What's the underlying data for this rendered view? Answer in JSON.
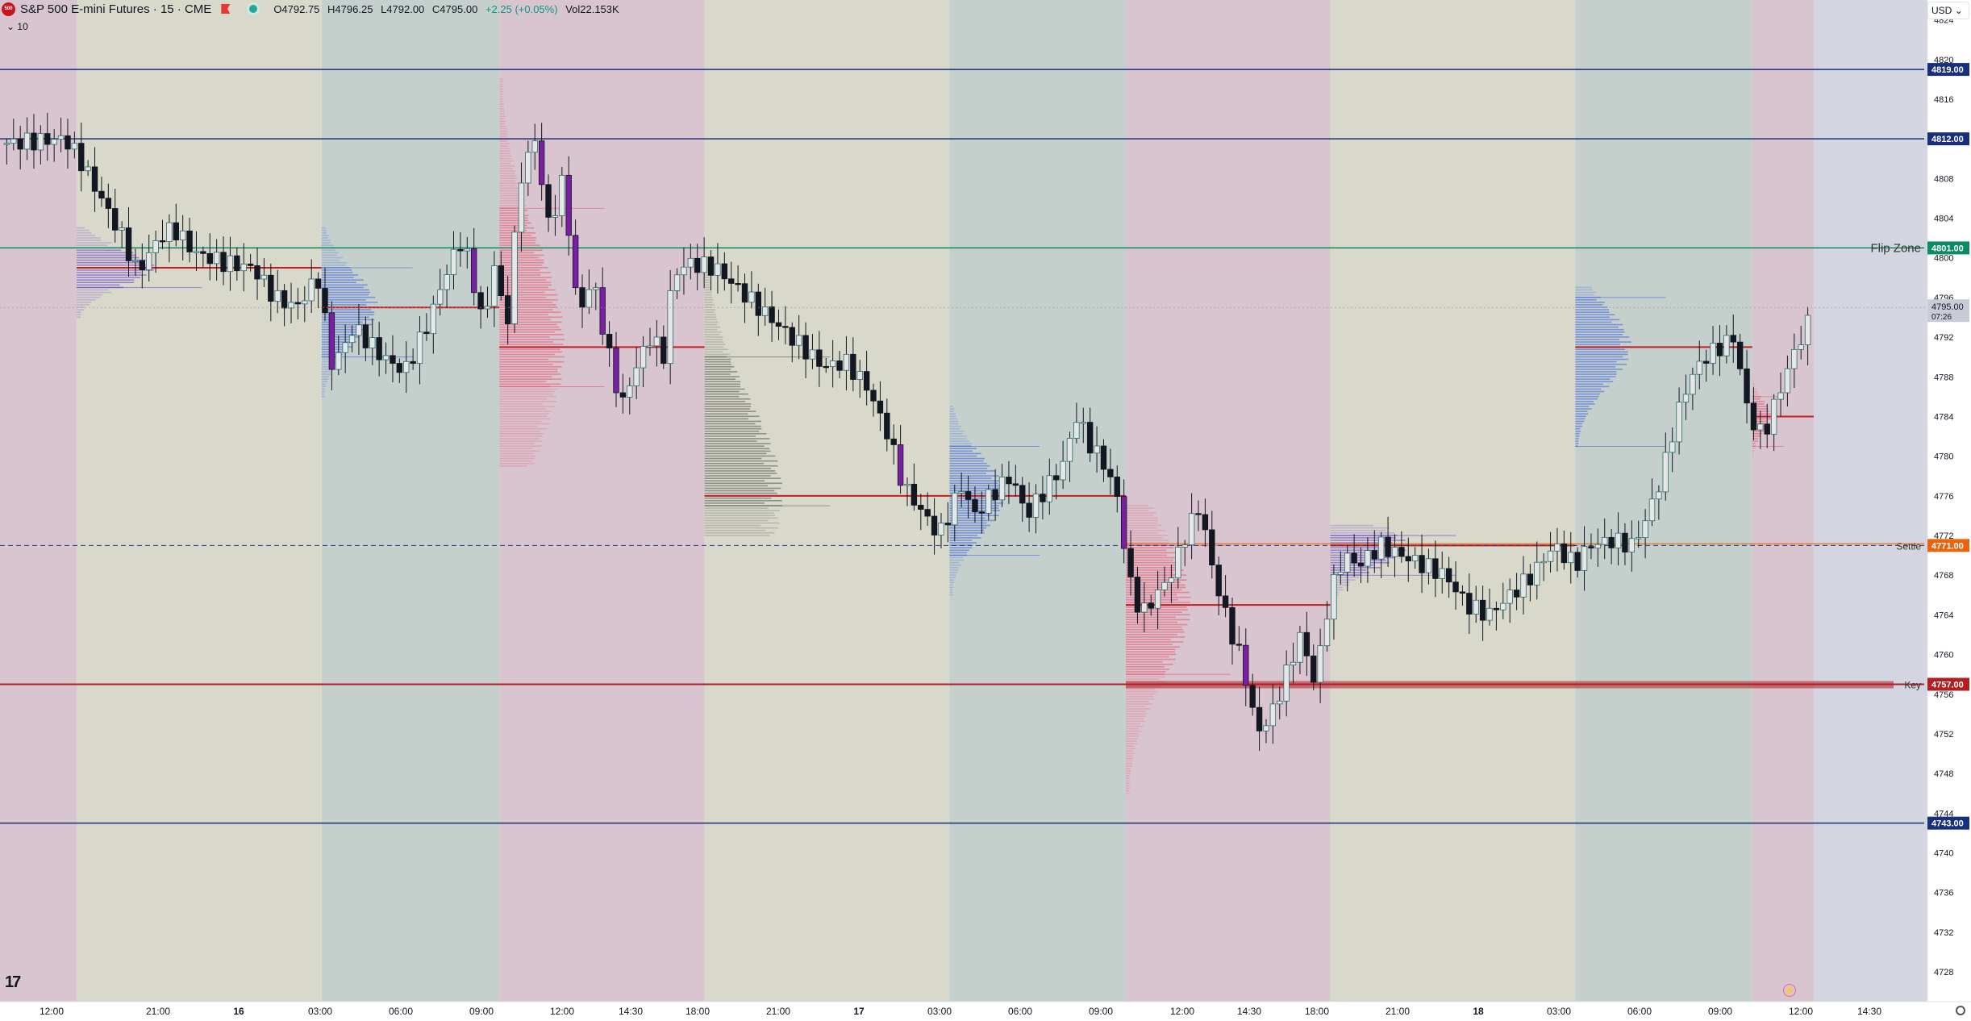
{
  "header": {
    "logo_text": "500",
    "symbol_title": "S&P 500 E-mini Futures · 15 · CME",
    "ohlc": {
      "open": "O4792.75",
      "high": "H4796.25",
      "low": "L4792.00",
      "close": "C4795.00",
      "change": "+2.25 (+0.05%)",
      "volume": "Vol22.153K"
    },
    "sub_label": "10",
    "currency": "USD"
  },
  "colors": {
    "bg_red_session": "#d9c5cf",
    "bg_yellow_session": "#d8d8cb",
    "bg_teal_session": "#c5d0cd",
    "bg_gray_future": "#d3d6e0",
    "level_blue": "#1a2f7a",
    "flip_green": "#0b8a63",
    "settle_orange": "#e8650d",
    "key_red": "#b01f24",
    "poc_red": "#c41e22",
    "candle_up_fill": "#e6e6e6",
    "candle_down": "#131722",
    "candle_purple": "#7a1fa2"
  },
  "chart_data": {
    "type": "candlestick",
    "title": "S&P 500 E-mini Futures · 15 · CME",
    "y_range": [
      4725,
      4826
    ],
    "y_ticks": [
      4728,
      4732,
      4736,
      4740,
      4744,
      4748,
      4752,
      4756,
      4760,
      4764,
      4768,
      4772,
      4776,
      4780,
      4784,
      4788,
      4792,
      4796,
      4800,
      4804,
      4808,
      4812,
      4816,
      4820,
      4824
    ],
    "x_ticks": [
      "12:00",
      "21:00",
      "16",
      "03:00",
      "06:00",
      "09:00",
      "12:00",
      "14:30",
      "18:00",
      "21:00",
      "17",
      "03:00",
      "06:00",
      "09:00",
      "12:00",
      "14:30",
      "18:00",
      "21:00",
      "18",
      "03:00",
      "06:00",
      "09:00",
      "12:00",
      "14:30"
    ],
    "price_levels": [
      {
        "price": 4819.0,
        "label": "4819.00",
        "name": ""
      },
      {
        "price": 4812.0,
        "label": "4812.00",
        "name": ""
      },
      {
        "price": 4801.0,
        "label": "4801.00",
        "name": "Flip Zone"
      },
      {
        "price": 4771.0,
        "label": "4771.00",
        "name": "Settle"
      },
      {
        "price": 4757.0,
        "label": "4757.00",
        "name": "Key"
      },
      {
        "price": 4743.0,
        "label": "4743.00",
        "name": ""
      }
    ],
    "last_price": {
      "price": 4795.0,
      "label": "4795.00",
      "countdown": "07:26"
    },
    "sessions": [
      {
        "type": "red",
        "from": 0.0,
        "to": 1.06
      },
      {
        "type": "yellow",
        "from": 1.06,
        "to": 4.45
      },
      {
        "type": "teal",
        "from": 4.45,
        "to": 6.91
      },
      {
        "type": "red",
        "from": 6.91,
        "to": 9.75
      },
      {
        "type": "yellow",
        "from": 9.75,
        "to": 13.14
      },
      {
        "type": "teal",
        "from": 13.14,
        "to": 15.58
      },
      {
        "type": "red",
        "from": 15.58,
        "to": 18.41
      },
      {
        "type": "yellow",
        "from": 18.41,
        "to": 21.8
      },
      {
        "type": "teal",
        "from": 21.8,
        "to": 24.25
      },
      {
        "type": "red",
        "from": 24.25,
        "to": 25.1
      },
      {
        "type": "gray",
        "from": 25.1,
        "to": 27.5
      }
    ],
    "volume_profiles": [
      {
        "from": 1.06,
        "to": 4.45,
        "top": 4803,
        "bottom": 4794,
        "poc": 4799,
        "va_high": 4801,
        "va_low": 4797,
        "color": "purple"
      },
      {
        "from": 4.45,
        "to": 6.91,
        "top": 4803,
        "bottom": 4786,
        "poc": 4795,
        "va_high": 4799,
        "va_low": 4790,
        "color": "blue"
      },
      {
        "from": 6.91,
        "to": 9.75,
        "top": 4818,
        "bottom": 4779,
        "poc": 4791,
        "va_high": 4805,
        "va_low": 4787,
        "color": "red"
      },
      {
        "from": 9.75,
        "to": 13.14,
        "top": 4800,
        "bottom": 4772,
        "poc": 4776,
        "va_high": 4790,
        "va_low": 4775,
        "color": "gray"
      },
      {
        "from": 13.14,
        "to": 15.58,
        "top": 4785,
        "bottom": 4766,
        "poc": 4776,
        "va_high": 4781,
        "va_low": 4770,
        "color": "blue"
      },
      {
        "from": 15.58,
        "to": 18.41,
        "top": 4775,
        "bottom": 4746,
        "poc": 4765,
        "va_high": 4771,
        "va_low": 4758,
        "color": "red"
      },
      {
        "from": 18.41,
        "to": 21.8,
        "top": 4773,
        "bottom": 4765,
        "poc": 4771,
        "va_high": 4772,
        "va_low": 4768,
        "color": "purple"
      },
      {
        "from": 21.8,
        "to": 24.25,
        "top": 4797,
        "bottom": 4781,
        "poc": 4791,
        "va_high": 4796,
        "va_low": 4781,
        "color": "blue"
      },
      {
        "from": 24.25,
        "to": 25.1,
        "top": 4788,
        "bottom": 4780,
        "poc": 4784,
        "va_high": 4786,
        "va_low": 4781,
        "color": "red"
      }
    ],
    "price_path": [
      [
        0.0,
        4811.5
      ],
      [
        0.9,
        4812.0
      ],
      [
        1.1,
        4810.0
      ],
      [
        1.4,
        4806.0
      ],
      [
        1.7,
        4802.0
      ],
      [
        1.9,
        4798.5
      ],
      [
        2.2,
        4802.0
      ],
      [
        2.4,
        4803.0
      ],
      [
        2.7,
        4800.5
      ],
      [
        3.1,
        4799.5
      ],
      [
        3.5,
        4799.0
      ],
      [
        3.8,
        4796.0
      ],
      [
        4.1,
        4795.0
      ],
      [
        4.4,
        4798.0
      ],
      [
        4.6,
        4789.0
      ],
      [
        4.9,
        4793.0
      ],
      [
        5.3,
        4790.0
      ],
      [
        5.6,
        4788.5
      ],
      [
        5.9,
        4793.0
      ],
      [
        6.2,
        4799.0
      ],
      [
        6.4,
        4802.0
      ],
      [
        6.7,
        4793.0
      ],
      [
        6.85,
        4800.0
      ],
      [
        7.0,
        4792.0
      ],
      [
        7.2,
        4808.0
      ],
      [
        7.4,
        4812.0
      ],
      [
        7.6,
        4803.0
      ],
      [
        7.8,
        4808.0
      ],
      [
        8.0,
        4794.0
      ],
      [
        8.2,
        4798.0
      ],
      [
        8.4,
        4791.0
      ],
      [
        8.6,
        4785.0
      ],
      [
        8.8,
        4789.0
      ],
      [
        9.0,
        4792.0
      ],
      [
        9.2,
        4790.0
      ],
      [
        9.3,
        4798.0
      ],
      [
        9.5,
        4799.5
      ],
      [
        9.9,
        4799.0
      ],
      [
        10.2,
        4797.0
      ],
      [
        10.5,
        4795.0
      ],
      [
        10.8,
        4793.0
      ],
      [
        11.1,
        4791.0
      ],
      [
        11.4,
        4789.0
      ],
      [
        11.7,
        4789.5
      ],
      [
        12.0,
        4787.0
      ],
      [
        12.3,
        4782.0
      ],
      [
        12.5,
        4777.0
      ],
      [
        12.8,
        4774.0
      ],
      [
        13.0,
        4772.0
      ],
      [
        13.3,
        4777.0
      ],
      [
        13.5,
        4774.0
      ],
      [
        13.7,
        4776.0
      ],
      [
        14.0,
        4778.0
      ],
      [
        14.2,
        4774.0
      ],
      [
        14.4,
        4776.0
      ],
      [
        14.7,
        4779.0
      ],
      [
        14.9,
        4784.0
      ],
      [
        15.1,
        4781.0
      ],
      [
        15.3,
        4779.0
      ],
      [
        15.5,
        4775.0
      ],
      [
        15.6,
        4768.0
      ],
      [
        15.8,
        4764.0
      ],
      [
        16.0,
        4766.0
      ],
      [
        16.2,
        4768.0
      ],
      [
        16.4,
        4772.0
      ],
      [
        16.6,
        4775.0
      ],
      [
        16.8,
        4768.0
      ],
      [
        17.0,
        4763.0
      ],
      [
        17.2,
        4759.0
      ],
      [
        17.4,
        4752.0
      ],
      [
        17.6,
        4754.0
      ],
      [
        17.8,
        4758.0
      ],
      [
        18.0,
        4762.0
      ],
      [
        18.2,
        4757.0
      ],
      [
        18.4,
        4766.0
      ],
      [
        18.6,
        4770.0
      ],
      [
        18.8,
        4769.0
      ],
      [
        19.1,
        4771.0
      ],
      [
        19.4,
        4770.0
      ],
      [
        19.7,
        4769.0
      ],
      [
        20.0,
        4768.0
      ],
      [
        20.3,
        4765.0
      ],
      [
        20.6,
        4764.0
      ],
      [
        20.9,
        4766.0
      ],
      [
        21.2,
        4768.0
      ],
      [
        21.5,
        4771.0
      ],
      [
        21.8,
        4769.0
      ],
      [
        22.0,
        4771.0
      ],
      [
        22.3,
        4771.5
      ],
      [
        22.6,
        4771.0
      ],
      [
        22.8,
        4774.0
      ],
      [
        23.0,
        4778.0
      ],
      [
        23.2,
        4784.0
      ],
      [
        23.4,
        4788.0
      ],
      [
        23.6,
        4790.0
      ],
      [
        23.8,
        4791.0
      ],
      [
        24.0,
        4792.0
      ],
      [
        24.2,
        4784.0
      ],
      [
        24.4,
        4782.0
      ],
      [
        24.6,
        4786.0
      ],
      [
        24.8,
        4790.0
      ],
      [
        25.0,
        4793.0
      ],
      [
        25.1,
        4795.0
      ]
    ],
    "grid": false,
    "legend": "none"
  }
}
